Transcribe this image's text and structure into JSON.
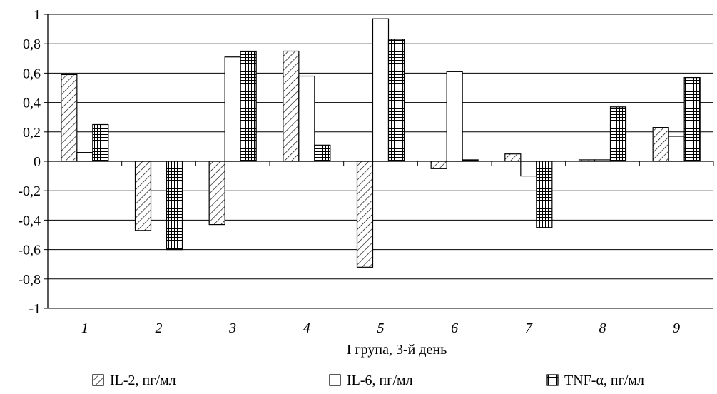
{
  "chart_data": {
    "type": "bar",
    "title": "",
    "xlabel": "I група, 3-й день",
    "ylabel": "",
    "ylim": [
      -1,
      1
    ],
    "yticks": [
      -1,
      -0.8,
      -0.6,
      -0.4,
      -0.2,
      0,
      0.2,
      0.4,
      0.6,
      0.8,
      1
    ],
    "ytick_labels": [
      "-1",
      "-0,8",
      "-0,6",
      "-0,4",
      "-0,2",
      "0",
      "0,2",
      "0,4",
      "0,6",
      "0,8",
      "1"
    ],
    "categories": [
      "1",
      "2",
      "3",
      "4",
      "5",
      "6",
      "7",
      "8",
      "9"
    ],
    "series": [
      {
        "name": "IL-2, пг/мл",
        "pattern": "diagonal-hatch",
        "values": [
          0.59,
          -0.47,
          -0.43,
          0.75,
          -0.72,
          -0.05,
          0.05,
          0.01,
          0.23
        ]
      },
      {
        "name": "IL-6, пг/мл",
        "pattern": "empty",
        "values": [
          0.06,
          -0.2,
          0.71,
          0.58,
          0.97,
          0.61,
          -0.1,
          0.01,
          0.17
        ]
      },
      {
        "name": "TNF-α, пг/мл",
        "pattern": "crosshatch",
        "values": [
          0.25,
          -0.6,
          0.75,
          0.11,
          0.83,
          0.01,
          -0.45,
          0.37,
          0.57
        ]
      }
    ],
    "grid": true,
    "legend": "bottom",
    "colors": {
      "bar_stroke": "#000000",
      "fill": "#ffffff",
      "grid": "#000000"
    }
  }
}
